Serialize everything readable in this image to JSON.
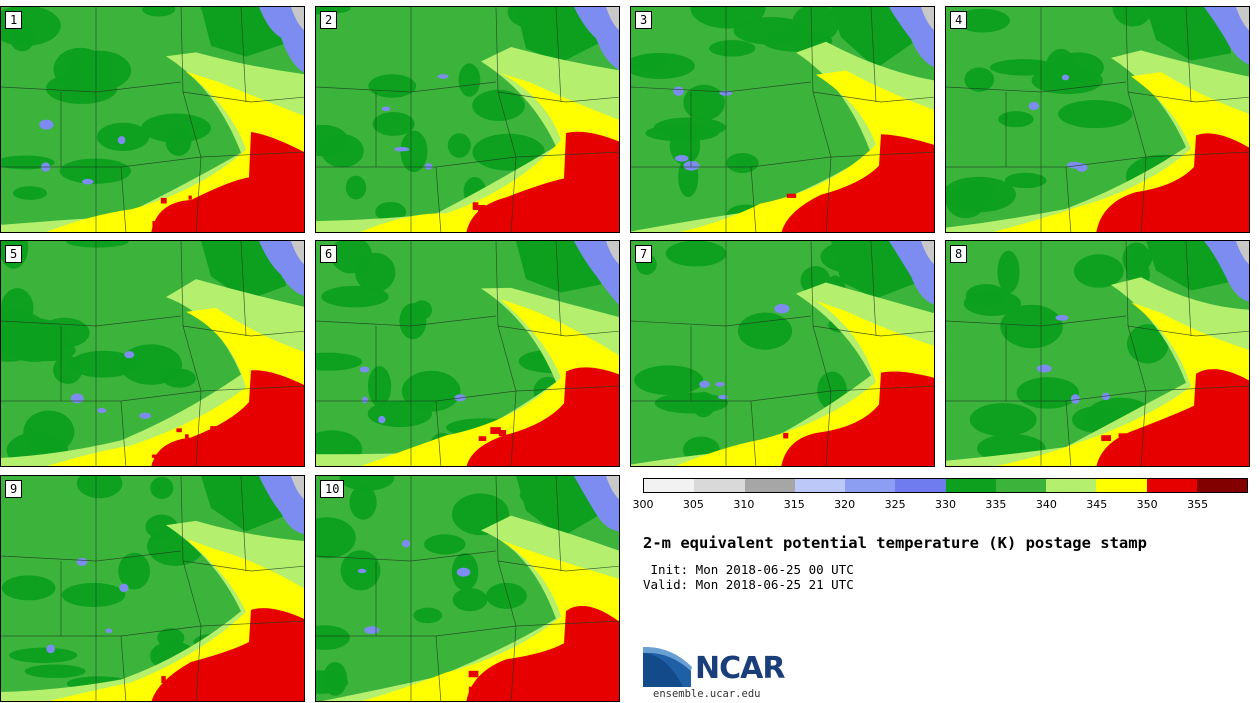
{
  "figure": {
    "title": "2-m equivalent potential temperature (K) postage stamp",
    "init": " Init: Mon 2018-06-25 00 UTC",
    "valid": "Valid: Mon 2018-06-25 21 UTC",
    "logo_text": "NCAR",
    "logo_url": "ensemble.ucar.edu"
  },
  "stamps": [
    "1",
    "2",
    "3",
    "4",
    "5",
    "6",
    "7",
    "8",
    "9",
    "10"
  ],
  "colorbar": {
    "ticks": [
      "300",
      "305",
      "310",
      "315",
      "320",
      "325",
      "330",
      "335",
      "340",
      "345",
      "350",
      "355"
    ],
    "colors": [
      "#f2f2f2",
      "#d9d9d9",
      "#a6a6a6",
      "#bcc8f8",
      "#8c9ef2",
      "#6e7cf0",
      "#0ca01e",
      "#3cb43c",
      "#b4f06e",
      "#ffff00",
      "#e60000",
      "#820000"
    ]
  },
  "map_colors": {
    "dark_green": "#0ca01e",
    "mid_green": "#3cb43c",
    "light_green": "#b4f06e",
    "yellow": "#ffff00",
    "red": "#e60000",
    "blue": "#7c8cf0",
    "light_blue": "#bcc8f8",
    "gray": "#c8c8c8",
    "border": "#1e3c1e"
  }
}
